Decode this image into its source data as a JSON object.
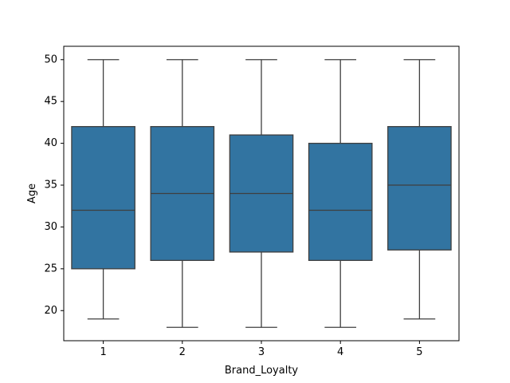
{
  "chart_data": {
    "type": "box",
    "xlabel": "Brand_Loyalty",
    "ylabel": "Age",
    "categories": [
      "1",
      "2",
      "3",
      "4",
      "5"
    ],
    "boxes": [
      {
        "category": "1",
        "whisker_low": 19,
        "q1": 25,
        "median": 32,
        "q3": 42,
        "whisker_high": 50
      },
      {
        "category": "2",
        "whisker_low": 18,
        "q1": 26,
        "median": 34,
        "q3": 42,
        "whisker_high": 50
      },
      {
        "category": "3",
        "whisker_low": 18,
        "q1": 27,
        "median": 34,
        "q3": 41,
        "whisker_high": 50
      },
      {
        "category": "4",
        "whisker_low": 18,
        "q1": 26,
        "median": 32,
        "q3": 40,
        "whisker_high": 50
      },
      {
        "category": "5",
        "whisker_low": 19,
        "q1": 27.25,
        "median": 35,
        "q3": 42,
        "whisker_high": 50
      }
    ],
    "ylim": [
      16.4,
      51.6
    ],
    "yticks": [
      20,
      25,
      30,
      35,
      40,
      45,
      50
    ],
    "box_color": "#3274a1",
    "line_color": "#3f3f3f",
    "grid": false,
    "legend": "none"
  }
}
